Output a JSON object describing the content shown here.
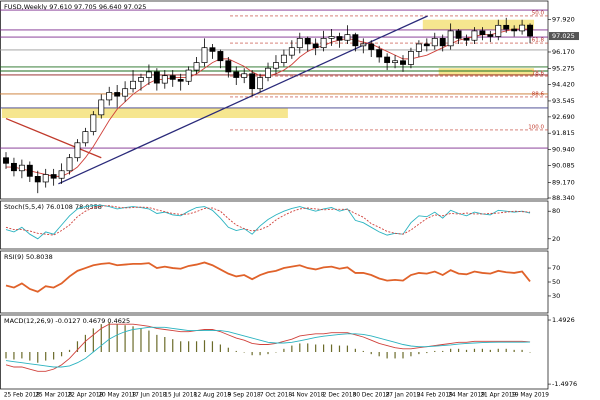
{
  "chart_data": {
    "type": "candlestick",
    "title": "FUSD,Weekly 97.610 97.705 96.640 97.025",
    "categories": [
      null,
      null,
      "25 Feb 2018",
      null,
      null,
      null,
      "25 Mar 2018",
      null,
      null,
      null,
      "22 Apr 2018",
      null,
      null,
      null,
      "20 May 2018",
      null,
      null,
      null,
      "17 Jun 2018",
      null,
      null,
      null,
      "15 Jul 2018",
      null,
      null,
      null,
      "12 Aug 2018",
      null,
      null,
      null,
      "9 Sep 2018",
      null,
      null,
      null,
      "7 Oct 2018",
      null,
      null,
      null,
      "4 Nov 2018",
      null,
      null,
      null,
      "2 Dec 2018",
      null,
      null,
      null,
      "30 Dec 2018",
      null,
      null,
      null,
      "27 Jan 2019",
      null,
      null,
      null,
      "24 Feb 2019",
      null,
      null,
      null,
      "24 Mar 2019",
      null,
      null,
      null,
      "21 Apr 2019",
      null,
      null,
      null,
      "19 May 2019"
    ],
    "candles": [
      [
        90.5,
        90.8,
        89.9,
        90.2
      ],
      [
        90.2,
        90.5,
        89.5,
        89.8
      ],
      [
        89.8,
        90.4,
        89.4,
        90.1
      ],
      [
        90.1,
        90.3,
        89.2,
        89.5
      ],
      [
        89.5,
        89.8,
        88.6,
        89.2
      ],
      [
        89.2,
        89.9,
        88.9,
        89.6
      ],
      [
        89.6,
        89.9,
        89.0,
        89.4
      ],
      [
        89.4,
        90.2,
        89.1,
        89.8
      ],
      [
        89.8,
        90.7,
        89.6,
        90.5
      ],
      [
        90.5,
        91.5,
        90.3,
        91.3
      ],
      [
        91.3,
        92.1,
        91.1,
        91.9
      ],
      [
        91.9,
        93.0,
        91.7,
        92.8
      ],
      [
        92.8,
        93.9,
        92.6,
        93.6
      ],
      [
        93.6,
        94.3,
        93.3,
        94.0
      ],
      [
        94.0,
        94.4,
        93.2,
        93.8
      ],
      [
        93.8,
        94.6,
        93.5,
        94.2
      ],
      [
        94.2,
        95.2,
        94.0,
        94.6
      ],
      [
        94.6,
        95.0,
        94.1,
        94.8
      ],
      [
        94.8,
        95.5,
        94.4,
        95.1
      ],
      [
        95.1,
        95.3,
        94.1,
        94.5
      ],
      [
        94.5,
        95.2,
        94.2,
        94.9
      ],
      [
        94.9,
        95.2,
        94.3,
        94.7
      ],
      [
        94.7,
        95.0,
        94.1,
        94.6
      ],
      [
        94.6,
        95.4,
        94.4,
        95.2
      ],
      [
        95.2,
        95.9,
        95.0,
        95.6
      ],
      [
        95.6,
        96.9,
        95.4,
        96.4
      ],
      [
        96.4,
        96.6,
        95.8,
        96.2
      ],
      [
        96.2,
        96.3,
        95.3,
        95.7
      ],
      [
        95.7,
        95.9,
        94.8,
        95.1
      ],
      [
        95.1,
        95.4,
        94.4,
        94.8
      ],
      [
        94.8,
        95.3,
        94.5,
        95.0
      ],
      [
        95.0,
        95.2,
        93.8,
        94.2
      ],
      [
        94.2,
        95.0,
        94.0,
        94.8
      ],
      [
        94.8,
        95.6,
        94.6,
        95.3
      ],
      [
        95.3,
        96.0,
        95.0,
        95.6
      ],
      [
        95.6,
        96.3,
        95.4,
        96.0
      ],
      [
        96.0,
        96.8,
        95.8,
        96.4
      ],
      [
        96.4,
        97.2,
        96.1,
        96.9
      ],
      [
        96.9,
        97.0,
        96.2,
        96.6
      ],
      [
        96.6,
        96.9,
        96.0,
        96.4
      ],
      [
        96.4,
        97.3,
        96.2,
        96.9
      ],
      [
        96.9,
        97.4,
        96.5,
        97.0
      ],
      [
        97.0,
        97.2,
        96.4,
        96.8
      ],
      [
        96.8,
        97.6,
        96.6,
        97.1
      ],
      [
        97.1,
        97.2,
        96.2,
        96.5
      ],
      [
        96.5,
        96.9,
        96.1,
        96.6
      ],
      [
        96.6,
        96.8,
        95.9,
        96.3
      ],
      [
        96.3,
        96.5,
        95.6,
        95.9
      ],
      [
        95.9,
        96.1,
        95.2,
        95.6
      ],
      [
        95.6,
        96.0,
        95.3,
        95.7
      ],
      [
        95.7,
        96.0,
        95.1,
        95.5
      ],
      [
        95.5,
        96.4,
        95.3,
        96.2
      ],
      [
        96.2,
        96.8,
        95.9,
        96.6
      ],
      [
        96.6,
        96.9,
        96.2,
        96.5
      ],
      [
        96.5,
        97.2,
        96.3,
        96.9
      ],
      [
        96.9,
        97.1,
        96.2,
        96.5
      ],
      [
        96.5,
        97.7,
        96.3,
        97.3
      ],
      [
        97.3,
        97.4,
        96.6,
        96.9
      ],
      [
        96.9,
        97.1,
        96.5,
        96.8
      ],
      [
        96.8,
        97.5,
        96.6,
        97.3
      ],
      [
        97.3,
        97.5,
        96.8,
        97.1
      ],
      [
        97.1,
        97.3,
        96.7,
        97.0
      ],
      [
        97.0,
        97.9,
        96.8,
        97.6
      ],
      [
        97.6,
        98.0,
        97.2,
        97.4
      ],
      [
        97.4,
        97.6,
        97.0,
        97.3
      ],
      [
        97.3,
        97.9,
        97.1,
        97.61
      ],
      [
        97.61,
        97.705,
        96.64,
        97.025
      ]
    ],
    "ylim": [
      88.34,
      98.85
    ],
    "yticks": [
      {
        "value": 97.92,
        "label": "97.920"
      },
      {
        "value": 96.17,
        "label": "96.170"
      },
      {
        "value": 95.275,
        "label": "95.275"
      },
      {
        "value": 94.42,
        "label": "94.420"
      },
      {
        "value": 93.545,
        "label": "93.545"
      },
      {
        "value": 92.69,
        "label": "92.690"
      },
      {
        "value": 91.815,
        "label": "91.815"
      },
      {
        "value": 90.94,
        "label": "90.940"
      },
      {
        "value": 90.085,
        "label": "90.085"
      },
      {
        "value": 89.17,
        "label": "89.170"
      },
      {
        "value": 88.34,
        "label": "88.340"
      }
    ],
    "ma": {
      "color": "#d0413b",
      "values": [
        90.0,
        90.0,
        89.9,
        89.8,
        89.7,
        89.6,
        89.5,
        89.5,
        89.7,
        90.0,
        90.5,
        91.1,
        91.8,
        92.5,
        93.1,
        93.5,
        93.9,
        94.2,
        94.5,
        94.7,
        94.7,
        94.8,
        94.8,
        94.8,
        95.0,
        95.3,
        95.6,
        95.8,
        95.8,
        95.6,
        95.4,
        95.1,
        94.9,
        94.9,
        95.0,
        95.2,
        95.5,
        95.9,
        96.2,
        96.4,
        96.5,
        96.7,
        96.8,
        96.9,
        96.8,
        96.7,
        96.6,
        96.4,
        96.2,
        96.0,
        95.8,
        95.8,
        95.9,
        96.0,
        96.2,
        96.4,
        96.6,
        96.8,
        96.9,
        97.0,
        97.1,
        97.1,
        97.2,
        97.3,
        97.4,
        97.4,
        97.4
      ]
    },
    "levels": [
      {
        "value": 98.42,
        "color": "#7b2a8c"
      },
      {
        "value": 97.35,
        "color": "#7b2a8c"
      },
      {
        "value": 96.97,
        "color": "#7b2a8c"
      },
      {
        "value": 96.28,
        "color": "#9a9a9a"
      },
      {
        "value": 95.37,
        "color": "#1c6b1c"
      },
      {
        "value": 95.15,
        "color": "#1c6b1c"
      },
      {
        "value": 94.94,
        "color": "#8b1a1a"
      },
      {
        "value": 93.92,
        "color": "#c8742a"
      },
      {
        "value": 93.17,
        "color": "#3b3b8a"
      },
      {
        "value": 91.02,
        "color": "#7b2a8c"
      }
    ],
    "fib": [
      {
        "label": "50.0",
        "value": 98.1
      },
      {
        "label": "61.8",
        "value": 96.65
      },
      {
        "label": "78.6",
        "value": 94.88
      },
      {
        "label": "88.6",
        "value": 93.76
      },
      {
        "label": "100.0",
        "value": 91.99
      }
    ],
    "fib_color": "#c0392b",
    "zones": [
      {
        "low": 97.35,
        "high": 97.9,
        "start": 53,
        "end": 66
      },
      {
        "low": 94.9,
        "high": 95.3,
        "start": 55,
        "end": 66
      },
      {
        "low": 92.63,
        "high": 93.17,
        "start": 0,
        "end": 35
      }
    ],
    "zone_color": "#f3de6a",
    "trendlines": [
      {
        "color": "#2a2a7a",
        "points": [
          [
            6.6,
            89.1
          ],
          [
            53.1,
            98.1
          ]
        ]
      },
      {
        "color": "#c0392b",
        "points": [
          [
            0,
            92.6
          ],
          [
            12,
            90.5
          ]
        ]
      }
    ],
    "indicators": [
      {
        "type": "line",
        "label": "Stoch(5,5,4) 76.0108 78.0358",
        "ylim": [
          0,
          100
        ],
        "yticks": [
          80,
          20
        ],
        "series": [
          {
            "color": "#2bb3c0",
            "dashed": false,
            "values": [
              40,
              35,
              45,
              30,
              20,
              35,
              30,
              50,
              70,
              85,
              90,
              92,
              93,
              90,
              85,
              88,
              90,
              88,
              85,
              75,
              78,
              72,
              70,
              80,
              88,
              90,
              82,
              65,
              45,
              38,
              42,
              30,
              48,
              62,
              72,
              80,
              86,
              90,
              85,
              80,
              85,
              88,
              80,
              85,
              60,
              55,
              45,
              35,
              28,
              32,
              30,
              55,
              70,
              68,
              78,
              65,
              82,
              75,
              70,
              78,
              74,
              72,
              82,
              80,
              78,
              80,
              76.0108
            ]
          },
          {
            "color": "#d0413b",
            "dashed": true,
            "values": [
              45,
              40,
              40,
              37,
              32,
              30,
              28,
              38,
              50,
              68,
              80,
              88,
              91,
              92,
              89,
              87,
              88,
              89,
              88,
              83,
              79,
              75,
              73,
              74,
              79,
              86,
              87,
              80,
              64,
              50,
              42,
              37,
              40,
              47,
              61,
              71,
              79,
              85,
              87,
              85,
              83,
              84,
              84,
              84,
              75,
              67,
              53,
              45,
              36,
              32,
              30,
              39,
              52,
              64,
              72,
              70,
              75,
              74,
              76,
              74,
              74,
              75,
              76,
              78,
              80,
              79,
              78.0358
            ]
          }
        ]
      },
      {
        "type": "line",
        "label": "RSI(9) 50.8038",
        "ylim": [
          7,
          93
        ],
        "yticks": [
          70,
          50,
          30
        ],
        "series": [
          {
            "color": "#e0622a",
            "dashed": false,
            "width": 1.8,
            "values": [
              45,
              42,
              48,
              40,
              36,
              44,
              42,
              48,
              58,
              66,
              70,
              74,
              76,
              77,
              74,
              75,
              76,
              76,
              77,
              70,
              72,
              70,
              69,
              73,
              75,
              78,
              74,
              68,
              62,
              58,
              60,
              54,
              60,
              64,
              66,
              70,
              72,
              74,
              70,
              68,
              71,
              72,
              69,
              71,
              63,
              63,
              60,
              55,
              52,
              53,
              52,
              60,
              63,
              62,
              65,
              60,
              67,
              62,
              61,
              65,
              63,
              62,
              66,
              64,
              63,
              65,
              50.8038
            ]
          }
        ]
      },
      {
        "type": "line",
        "label": "MACD(12,26,9) -0.0127 0.4679 0.4625",
        "ylim": [
          -1.68,
          1.68
        ],
        "yticks": [
          1.4926,
          -1.4976
        ],
        "histogram": {
          "color": "#6b6b2a",
          "values": [
            -0.3,
            -0.35,
            -0.3,
            -0.4,
            -0.5,
            -0.4,
            -0.35,
            -0.2,
            0.1,
            0.5,
            0.8,
            1.1,
            1.3,
            1.4,
            1.3,
            1.25,
            1.2,
            1.1,
            1.0,
            0.8,
            0.7,
            0.6,
            0.5,
            0.5,
            0.5,
            0.55,
            0.5,
            0.35,
            0.2,
            0.05,
            0.0,
            -0.15,
            -0.15,
            -0.1,
            0.0,
            0.15,
            0.3,
            0.4,
            0.4,
            0.35,
            0.35,
            0.35,
            0.3,
            0.3,
            0.15,
            0.05,
            -0.1,
            -0.2,
            -0.3,
            -0.3,
            -0.3,
            -0.2,
            -0.1,
            -0.05,
            0.05,
            0.05,
            0.15,
            0.15,
            0.1,
            0.15,
            0.15,
            0.1,
            0.15,
            0.15,
            0.1,
            0.1,
            -0.0127
          ]
        },
        "series": [
          {
            "color": "#d0413b",
            "dashed": false,
            "values": [
              -0.6,
              -0.7,
              -0.7,
              -0.8,
              -0.9,
              -0.9,
              -0.8,
              -0.6,
              -0.3,
              0.1,
              0.5,
              0.8,
              1.1,
              1.3,
              1.3,
              1.3,
              1.3,
              1.25,
              1.2,
              1.1,
              1.05,
              1.0,
              0.95,
              0.95,
              1.0,
              1.05,
              1.05,
              0.95,
              0.8,
              0.65,
              0.55,
              0.4,
              0.35,
              0.35,
              0.4,
              0.5,
              0.6,
              0.75,
              0.8,
              0.85,
              0.85,
              0.9,
              0.9,
              0.9,
              0.8,
              0.7,
              0.55,
              0.4,
              0.3,
              0.2,
              0.15,
              0.15,
              0.2,
              0.25,
              0.3,
              0.35,
              0.4,
              0.45,
              0.45,
              0.5,
              0.5,
              0.5,
              0.5,
              0.5,
              0.5,
              0.5,
              0.4679
            ]
          },
          {
            "color": "#2bb3c0",
            "dashed": false,
            "values": [
              -0.4,
              -0.45,
              -0.5,
              -0.55,
              -0.6,
              -0.65,
              -0.7,
              -0.7,
              -0.65,
              -0.5,
              -0.3,
              0.0,
              0.3,
              0.6,
              0.8,
              0.95,
              1.05,
              1.1,
              1.15,
              1.15,
              1.15,
              1.1,
              1.05,
              1.0,
              1.0,
              1.0,
              1.0,
              1.0,
              0.95,
              0.85,
              0.75,
              0.65,
              0.55,
              0.45,
              0.42,
              0.42,
              0.45,
              0.52,
              0.6,
              0.68,
              0.74,
              0.78,
              0.82,
              0.85,
              0.85,
              0.82,
              0.75,
              0.65,
              0.55,
              0.45,
              0.35,
              0.28,
              0.25,
              0.25,
              0.27,
              0.3,
              0.33,
              0.37,
              0.4,
              0.42,
              0.44,
              0.45,
              0.46,
              0.46,
              0.46,
              0.46,
              0.4625
            ]
          }
        ]
      }
    ]
  }
}
